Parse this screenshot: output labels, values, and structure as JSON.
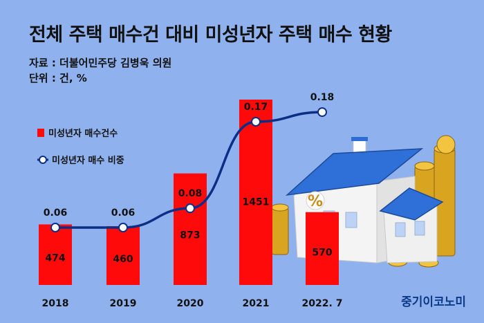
{
  "header": {
    "title": "전체 주택 매수건 대비 미성년자 주택 매수 현황",
    "source": "자료 : 더불어민주당 김병욱 의원",
    "unit": "단위 : 건, %"
  },
  "brand": {
    "logo": "중기이코노미"
  },
  "colors": {
    "background": "#8fb1ee",
    "bar": "#ff0a0a",
    "line": "#0b2f86",
    "marker_fill": "#ffffff"
  },
  "illustration": {
    "name": "house-with-coins-illustration"
  },
  "chart_data": {
    "type": "bar",
    "categories": [
      "2018",
      "2019",
      "2020",
      "2021",
      "2022. 7"
    ],
    "series": [
      {
        "name": "미성년자 매수건수",
        "type": "bar",
        "values": [
          474,
          460,
          873,
          1451,
          570
        ],
        "labels": [
          "474",
          "460",
          "873",
          "1451",
          "570"
        ]
      },
      {
        "name": "미성년자 매수 비중",
        "type": "line",
        "values": [
          0.06,
          0.06,
          0.08,
          0.17,
          0.18
        ],
        "labels": [
          "0.06",
          "0.06",
          "0.08",
          "0.17",
          "0.18"
        ]
      }
    ],
    "legend": {
      "placement": "left"
    },
    "grid": false
  }
}
